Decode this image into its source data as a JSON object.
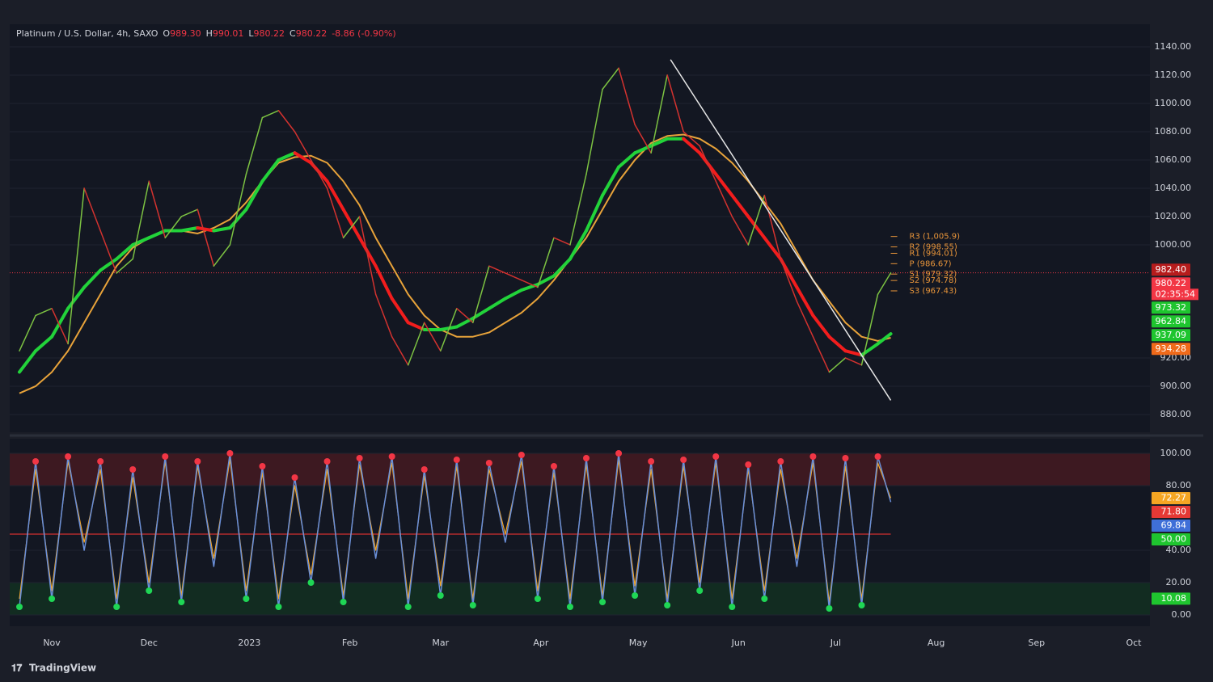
{
  "header": {
    "symbol": "Platinum / U.S. Dollar, 4h, SAXO",
    "ohlc": [
      {
        "key": "O",
        "value": "989.30"
      },
      {
        "key": "H",
        "value": "990.01"
      },
      {
        "key": "L",
        "value": "980.22"
      },
      {
        "key": "C",
        "value": "980.22"
      }
    ],
    "change": "-8.86 (-0.90%)"
  },
  "footer": {
    "brand": "TradingView"
  },
  "chart_data": [
    {
      "type": "line",
      "x": [
        -10,
        -5,
        0,
        5,
        10,
        15,
        20,
        25,
        30,
        35,
        40,
        45,
        50,
        55,
        60,
        65,
        70,
        75,
        80,
        85,
        90,
        95,
        100,
        105,
        110,
        115,
        120,
        125,
        130,
        135,
        140,
        145,
        150,
        155,
        160,
        165,
        170,
        175,
        180,
        185,
        190,
        195,
        200,
        205,
        210,
        215,
        220,
        225,
        230,
        235,
        240,
        245,
        250,
        255,
        259
      ],
      "xlim": [
        -13,
        339
      ],
      "ylim": [
        867.4,
        1150.3
      ],
      "yticks": [
        {
          "value": 880,
          "label": "880.00"
        },
        {
          "value": 900,
          "label": "900.00"
        },
        {
          "value": 920,
          "label": "920.00"
        },
        {
          "value": 1000,
          "label": "1000.00"
        },
        {
          "value": 1020,
          "label": "1020.00"
        },
        {
          "value": 1040,
          "label": "1040.00"
        },
        {
          "value": 1060,
          "label": "1060.00"
        },
        {
          "value": 1080,
          "label": "1080.00"
        },
        {
          "value": 1100,
          "label": "1100.00"
        },
        {
          "value": 1120,
          "label": "1120.00"
        },
        {
          "value": 1140,
          "label": "1140.00"
        }
      ],
      "series": [
        {
          "color": "#e8a33a",
          "width": 2,
          "values": [
            895,
            900,
            910,
            925,
            945,
            965,
            985,
            998,
            1005,
            1010,
            1010,
            1008,
            1012,
            1018,
            1030,
            1045,
            1058,
            1062,
            1063,
            1058,
            1045,
            1028,
            1005,
            985,
            965,
            950,
            940,
            935,
            935,
            938,
            945,
            952,
            962,
            975,
            990,
            1005,
            1025,
            1045,
            1060,
            1072,
            1077,
            1078,
            1075,
            1068,
            1058,
            1045,
            1030,
            1015,
            995,
            975,
            960,
            945,
            935,
            932,
            934.28
          ]
        },
        {
          "color": "#22d33a",
          "down_color": "#f21d1d",
          "width": 4,
          "values": [
            910,
            925,
            935,
            955,
            970,
            982,
            990,
            1000,
            1005,
            1010,
            1010,
            1012,
            1010,
            1012,
            1025,
            1045,
            1060,
            1065,
            1058,
            1045,
            1025,
            1005,
            985,
            962,
            945,
            940,
            940,
            942,
            948,
            955,
            962,
            968,
            972,
            978,
            990,
            1010,
            1035,
            1055,
            1065,
            1070,
            1075,
            1075,
            1065,
            1050,
            1035,
            1020,
            1005,
            990,
            970,
            950,
            935,
            925,
            922,
            930,
            937.09
          ]
        },
        {
          "color": "#7cc242",
          "down_color": "#d3322f",
          "width": 1.5,
          "values": [
            925,
            950,
            955,
            930,
            1040,
            1010,
            980,
            990,
            1045,
            1005,
            1020,
            1025,
            985,
            1000,
            1050,
            1090,
            1095,
            1080,
            1060,
            1040,
            1005,
            1020,
            965,
            935,
            915,
            945,
            925,
            955,
            945,
            985,
            980,
            975,
            970,
            1005,
            1000,
            1050,
            1110,
            1125,
            1085,
            1065,
            1120,
            1080,
            1070,
            1045,
            1020,
            1000,
            1035,
            990,
            960,
            935,
            910,
            920,
            915,
            965,
            980.22
          ]
        }
      ],
      "trendline": {
        "x": [
          191,
          259
        ],
        "y": [
          1131,
          890
        ],
        "color": "#e6e6e6"
      },
      "current_line": {
        "value": 980.22,
        "color": "#f23645"
      },
      "pivots": {
        "color": "#e8953a",
        "levels": [
          {
            "value": 1005.9,
            "label": "R3 (1,005.9)"
          },
          {
            "value": 998.55,
            "label": "R2 (998.55)"
          },
          {
            "value": 994.01,
            "label": "R1 (994.01)"
          },
          {
            "value": 986.67,
            "label": "P (986.67)"
          },
          {
            "value": 979.32,
            "label": "S1 (979.32)"
          },
          {
            "value": 974.78,
            "label": "S2 (974.78)"
          },
          {
            "value": 967.43,
            "label": "S3 (967.43)"
          }
        ]
      },
      "price_labels": [
        {
          "value": 982.4,
          "label": "982.40",
          "color": "#b71c1c"
        },
        {
          "value": 980.22,
          "label": "980.22",
          "color": "#f23645",
          "sub": "02:35:54"
        },
        {
          "value": 973.32,
          "label": "973.32",
          "color": "#1fc52f"
        },
        {
          "value": 962.84,
          "label": "962.84",
          "color": "#1fc52f"
        },
        {
          "value": 937.09,
          "label": "937.09",
          "color": "#1fc52f"
        },
        {
          "value": 934.28,
          "label": "934.28",
          "color": "#f06a1a"
        }
      ]
    },
    {
      "type": "line",
      "x": [
        -10,
        -5,
        0,
        5,
        10,
        15,
        20,
        25,
        30,
        35,
        40,
        45,
        50,
        55,
        60,
        65,
        70,
        75,
        80,
        85,
        90,
        95,
        100,
        105,
        110,
        115,
        120,
        125,
        130,
        135,
        140,
        145,
        150,
        155,
        160,
        165,
        170,
        175,
        180,
        185,
        190,
        195,
        200,
        205,
        210,
        215,
        220,
        225,
        230,
        235,
        240,
        245,
        250,
        255,
        259
      ],
      "xlim": [
        -13,
        339
      ],
      "ylim": [
        -7,
        108
      ],
      "xticks": [
        {
          "value": 0,
          "label": "Nov"
        },
        {
          "value": 30,
          "label": "Dec"
        },
        {
          "value": 61,
          "label": "2023"
        },
        {
          "value": 92,
          "label": "Feb"
        },
        {
          "value": 120,
          "label": "Mar"
        },
        {
          "value": 151,
          "label": "Apr"
        },
        {
          "value": 181,
          "label": "May"
        },
        {
          "value": 212,
          "label": "Jun"
        },
        {
          "value": 242,
          "label": "Jul"
        },
        {
          "value": 273,
          "label": "Aug"
        },
        {
          "value": 304,
          "label": "Sep"
        },
        {
          "value": 334,
          "label": "Oct"
        }
      ],
      "yticks": [
        {
          "value": 0,
          "label": "0.00"
        },
        {
          "value": 20,
          "label": "20.00"
        },
        {
          "value": 40,
          "label": "40.00"
        },
        {
          "value": 80,
          "label": "80.00"
        },
        {
          "value": 100,
          "label": "100.00"
        }
      ],
      "bands": [
        {
          "from": 80,
          "to": 100,
          "color": "#5a1a22"
        },
        {
          "from": 0,
          "to": 20,
          "color": "#123a22"
        }
      ],
      "levels": [
        0,
        20,
        80,
        100
      ],
      "midline": {
        "value": 50,
        "color": "#d32f2f"
      },
      "marker_colors": {
        "high": "#f23645",
        "low": "#1fd655"
      },
      "series": [
        {
          "color": "#f5a623",
          "width": 1.2,
          "values": [
            10,
            90,
            15,
            95,
            45,
            90,
            10,
            85,
            20,
            95,
            12,
            92,
            35,
            96,
            15,
            88,
            10,
            80,
            25,
            90,
            12,
            93,
            40,
            94,
            10,
            86,
            18,
            92,
            10,
            90,
            50,
            95,
            15,
            88,
            10,
            93,
            12,
            96,
            18,
            90,
            10,
            92,
            20,
            94,
            10,
            90,
            15,
            90,
            35,
            94,
            8,
            92,
            10,
            94,
            72.27
          ]
        },
        {
          "color": "#6a8fd8",
          "width": 1.5,
          "markers": true,
          "values": [
            5,
            95,
            10,
            98,
            40,
            95,
            5,
            90,
            15,
            98,
            8,
            95,
            30,
            100,
            10,
            92,
            5,
            85,
            20,
            95,
            8,
            97,
            35,
            98,
            5,
            90,
            12,
            96,
            6,
            94,
            45,
            99,
            10,
            92,
            5,
            97,
            8,
            100,
            12,
            95,
            6,
            96,
            15,
            98,
            5,
            93,
            10,
            95,
            30,
            98,
            4,
            97,
            6,
            98,
            69.84
          ]
        }
      ],
      "price_labels": [
        {
          "value": 72.27,
          "label": "72.27",
          "color": "#f5a623"
        },
        {
          "value": 71.8,
          "label": "71.80",
          "color": "#e53935"
        },
        {
          "value": 69.84,
          "label": "69.84",
          "color": "#3f6fd8"
        },
        {
          "value": 50,
          "label": "50.00",
          "color": "#1fc52f"
        },
        {
          "value": 10.08,
          "label": "10.08",
          "color": "#1fc52f"
        }
      ]
    }
  ]
}
